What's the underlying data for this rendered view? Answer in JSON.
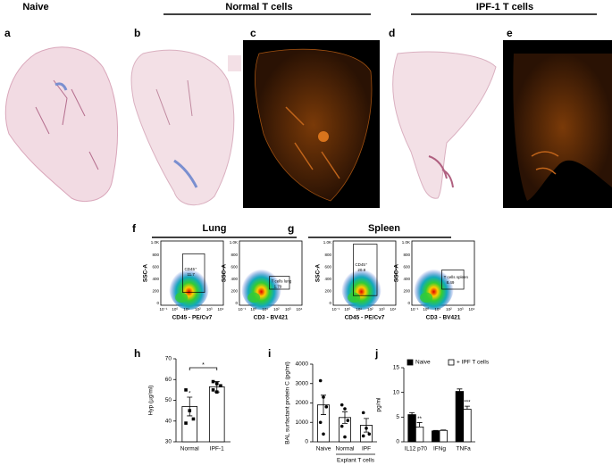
{
  "headers": [
    "Naive",
    "Normal T cells",
    "IPF-1 T cells"
  ],
  "panel_letters": [
    "a",
    "b",
    "c",
    "d",
    "e",
    "f",
    "g",
    "h",
    "i",
    "j"
  ],
  "flow": {
    "titles": [
      "Lung",
      "Spleen"
    ],
    "y_label": "SSC-A",
    "y_ticks": [
      "1.0K",
      "800",
      "600",
      "400",
      "200",
      "0"
    ],
    "x_ticks": [
      "10⁻¹",
      "10⁰",
      "10¹",
      "10²",
      "10³",
      "10⁴"
    ],
    "plots": [
      {
        "x_label": "CD45 - PE/Cv7",
        "gate_name": "CD45⁺",
        "gate_value": 11.7
      },
      {
        "x_label": "CD3 - BV421",
        "gate_name": "T cells lung",
        "gate_value": 1.79
      },
      {
        "x_label": "CD45 - PE/Cv7",
        "gate_name": "CD45⁺",
        "gate_value": 20.8
      },
      {
        "x_label": "CD3 - BV421",
        "gate_name": "T cells spleen",
        "gate_value": 8.49
      }
    ]
  },
  "chart_data": [
    {
      "type": "bar",
      "y_label": "Hyp (µg/ml)",
      "categories": [
        "Normal",
        "IPF-1"
      ],
      "values": [
        47,
        56.5
      ],
      "errors": [
        4.5,
        2.5
      ],
      "color": "#ffffff",
      "marker": "square",
      "points": [
        [
          55,
          45,
          41,
          39
        ],
        [
          59,
          58,
          57,
          55,
          54
        ]
      ],
      "significance": "*",
      "ylim": [
        30,
        70
      ],
      "yticks": [
        30,
        40,
        50,
        60,
        70
      ]
    },
    {
      "type": "bar",
      "y_label": "BAL surfactant protein C (pg/ml)",
      "categories": [
        "Naive",
        "Normal",
        "IPF"
      ],
      "values": [
        1900,
        1250,
        850
      ],
      "errors": [
        500,
        300,
        350
      ],
      "color": "#ffffff",
      "marker": "circle",
      "points": [
        [
          3150,
          2300,
          1800,
          1000,
          400
        ],
        [
          1900,
          1700,
          1100,
          800,
          250
        ],
        [
          1500,
          700,
          400,
          300
        ]
      ],
      "group_label": "Explant T cells",
      "ylim": [
        0,
        4000
      ],
      "yticks": [
        0,
        1000,
        2000,
        3000,
        4000
      ]
    },
    {
      "type": "grouped-bar",
      "y_label": "pg/ml",
      "categories": [
        "IL12 p70",
        "IFNg",
        "TNFa"
      ],
      "series": [
        {
          "name": "Naive",
          "color": "#000000",
          "values": [
            5.5,
            2.2,
            10.2
          ],
          "errors": [
            0.4,
            0.1,
            0.5
          ]
        },
        {
          "name": "+ IPF T cells",
          "color": "#ffffff",
          "values": [
            3,
            2.3,
            6.6
          ],
          "errors": [
            0.9,
            0.1,
            0.6
          ],
          "significance": [
            "**",
            null,
            "***"
          ]
        }
      ],
      "ylim": [
        0,
        15
      ],
      "yticks": [
        0,
        5,
        10,
        15
      ]
    }
  ]
}
